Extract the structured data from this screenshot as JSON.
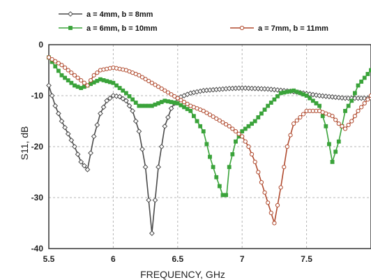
{
  "chart_data": {
    "type": "line",
    "title": "",
    "xlabel": "FREQUENCY, GHz",
    "ylabel": "S11, dB",
    "xlim": [
      5.5,
      8.0
    ],
    "ylim": [
      -40,
      0
    ],
    "x_ticks": [
      "5.5",
      "6",
      "6.5",
      "7",
      "7.5"
    ],
    "y_ticks": [
      "0",
      "-10",
      "-20",
      "-30",
      "-40"
    ],
    "grid": true,
    "legend_position": "top",
    "series": [
      {
        "name": "a = 4mm, b = 8mm",
        "color": "#4a4a4a",
        "marker": "diamond",
        "x": [
          5.5,
          5.55,
          5.6,
          5.65,
          5.7,
          5.75,
          5.8,
          5.85,
          5.9,
          5.95,
          6.0,
          6.05,
          6.1,
          6.15,
          6.2,
          6.25,
          6.3,
          6.35,
          6.4,
          6.45,
          6.5,
          6.6,
          6.7,
          6.8,
          6.9,
          7.0,
          7.2,
          7.4,
          7.6,
          7.8,
          8.0
        ],
        "y": [
          -8,
          -12,
          -15,
          -17.5,
          -20,
          -23,
          -24.5,
          -18,
          -13.5,
          -11,
          -10,
          -10.2,
          -11,
          -13,
          -17,
          -24,
          -37,
          -24,
          -16,
          -12.5,
          -10.5,
          -9.5,
          -9,
          -8.8,
          -8.6,
          -8.5,
          -8.7,
          -9.2,
          -10,
          -10.5,
          -10.5
        ]
      },
      {
        "name": "a = 6mm, b = 10mm",
        "color": "#3aa33a",
        "marker": "square",
        "x": [
          5.5,
          5.6,
          5.7,
          5.75,
          5.8,
          5.9,
          6.0,
          6.1,
          6.2,
          6.3,
          6.4,
          6.5,
          6.6,
          6.7,
          6.75,
          6.8,
          6.85,
          6.88,
          6.9,
          6.95,
          7.0,
          7.1,
          7.2,
          7.3,
          7.4,
          7.5,
          7.55,
          7.6,
          7.65,
          7.7,
          7.75,
          7.8,
          7.85,
          7.9,
          8.0
        ],
        "y": [
          -2.5,
          -6,
          -8,
          -8.5,
          -8,
          -6.8,
          -7.5,
          -9.5,
          -12,
          -12,
          -11,
          -11.5,
          -13,
          -17,
          -22,
          -26,
          -29.5,
          -29.5,
          -24,
          -19,
          -17,
          -15,
          -12,
          -9.5,
          -9,
          -10,
          -11,
          -12,
          -16,
          -23,
          -19,
          -13,
          -11,
          -8,
          -5
        ]
      },
      {
        "name": "a = 7mm, b = 11mm",
        "color": "#b04a2e",
        "marker": "circle",
        "x": [
          5.5,
          5.6,
          5.7,
          5.8,
          5.85,
          5.9,
          6.0,
          6.1,
          6.2,
          6.3,
          6.4,
          6.5,
          6.6,
          6.7,
          6.8,
          6.9,
          7.0,
          7.05,
          7.1,
          7.15,
          7.2,
          7.25,
          7.3,
          7.35,
          7.4,
          7.5,
          7.6,
          7.7,
          7.75,
          7.8,
          7.85,
          7.9,
          8.0
        ],
        "y": [
          -2.5,
          -4,
          -6,
          -8,
          -6,
          -5,
          -4.5,
          -5,
          -6,
          -7.5,
          -9,
          -10.5,
          -12,
          -13,
          -14.5,
          -16,
          -18,
          -20,
          -23,
          -27,
          -31,
          -35,
          -28,
          -20,
          -15.5,
          -13,
          -13,
          -14,
          -15.5,
          -16.5,
          -15,
          -13,
          -10
        ]
      }
    ]
  }
}
